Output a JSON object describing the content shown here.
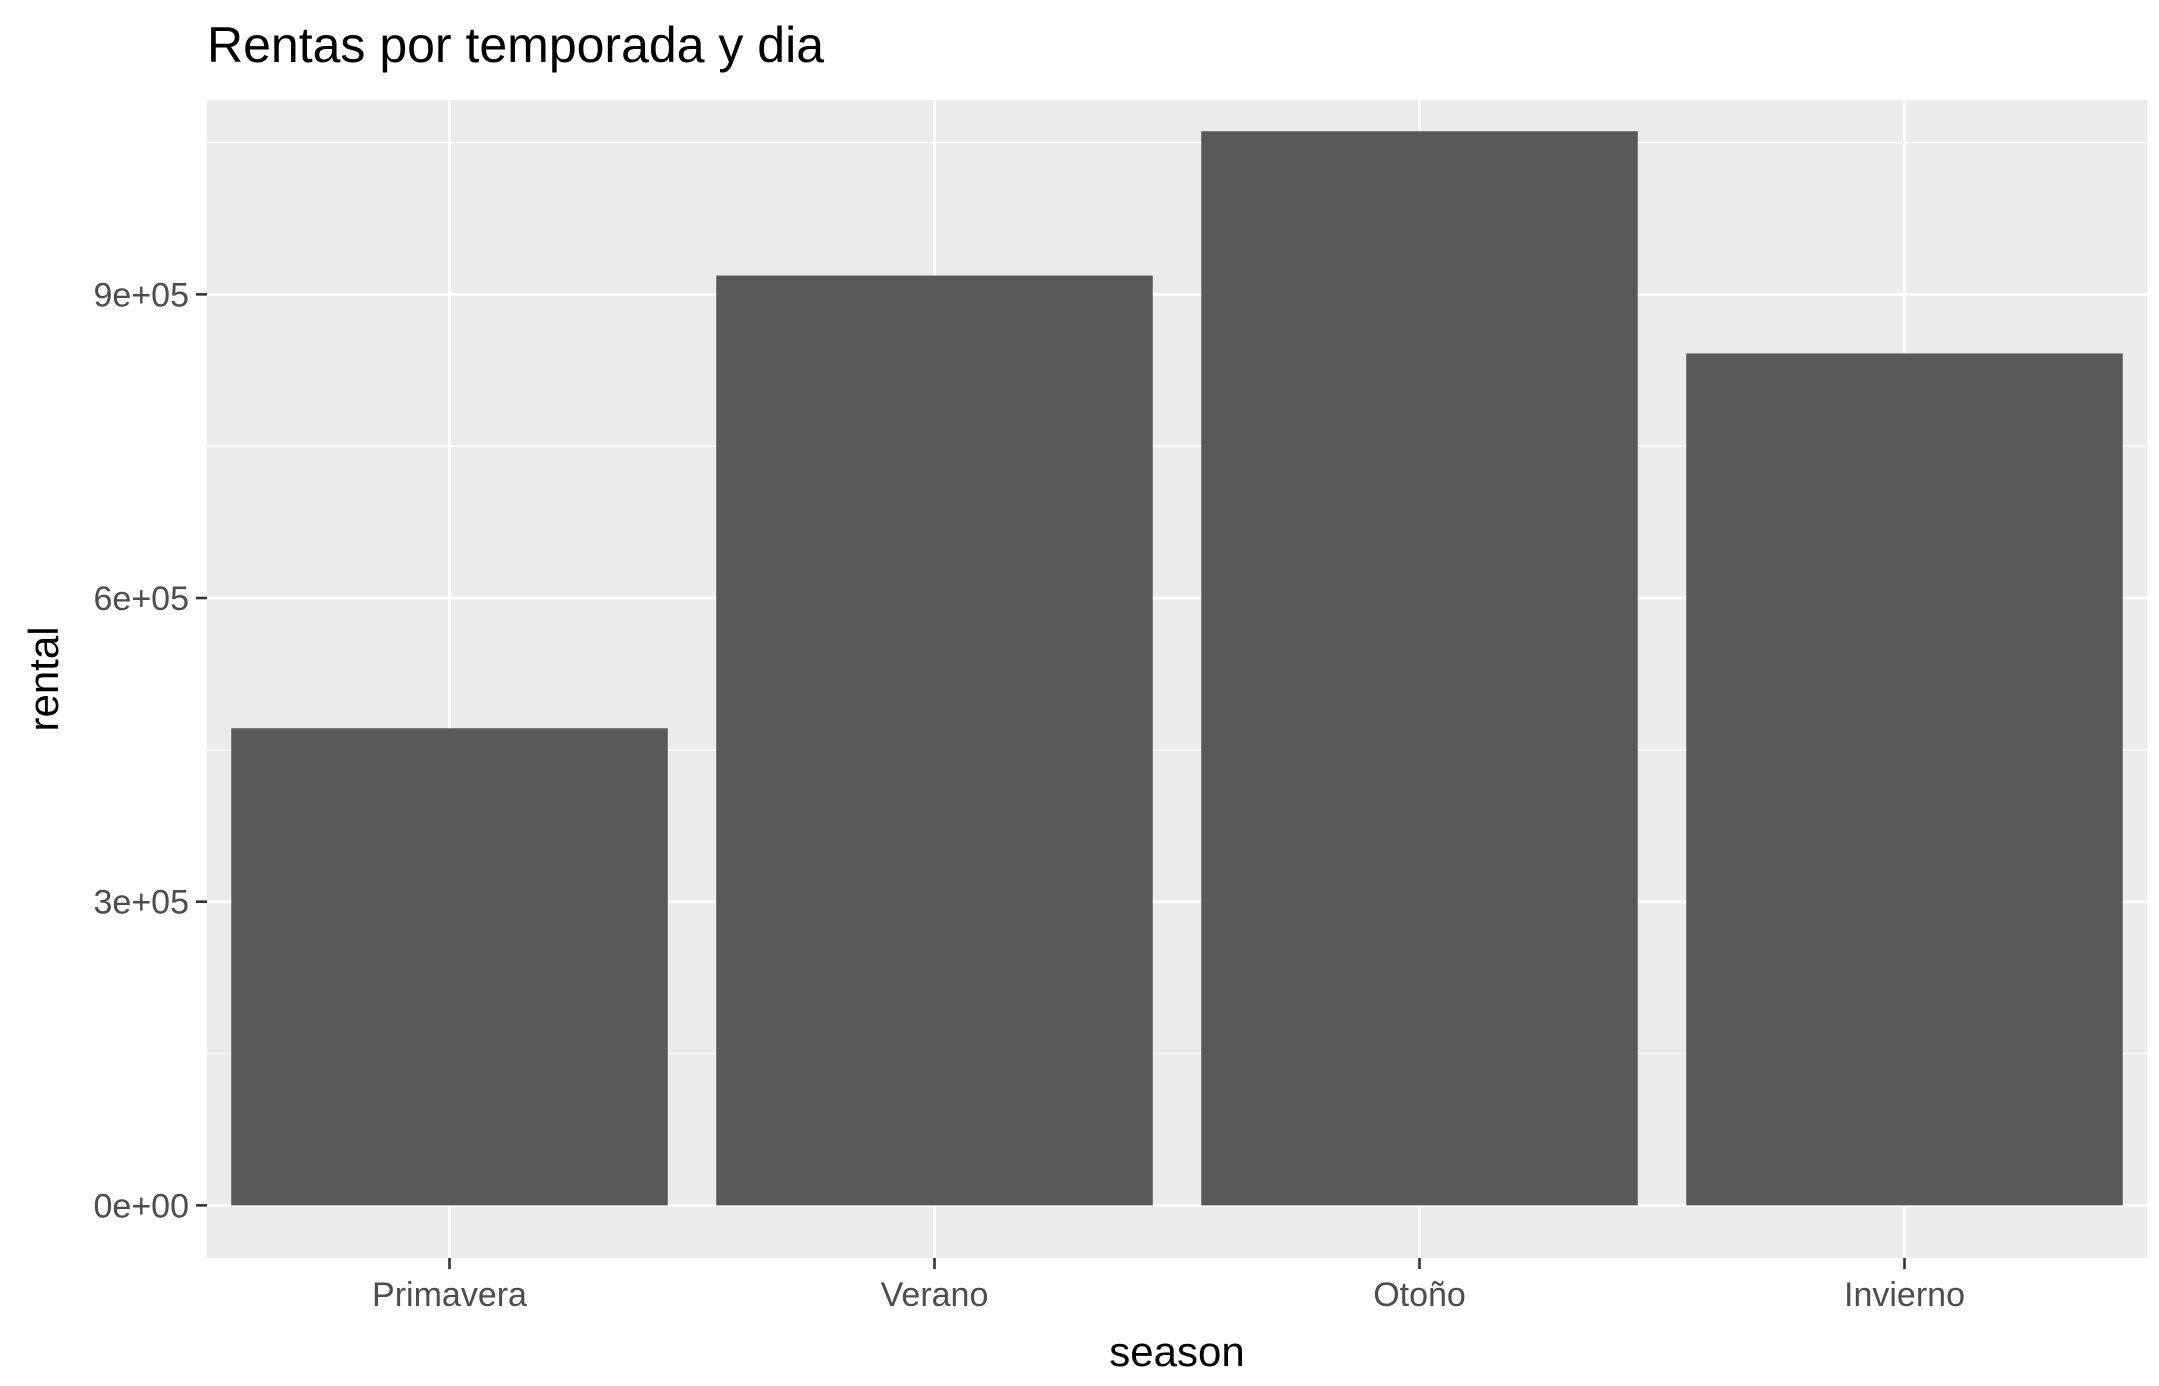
{
  "chart_data": {
    "type": "bar",
    "title": "Rentas por temporada y dia",
    "xlabel": "season",
    "ylabel": "rental",
    "categories": [
      "Primavera",
      "Verano",
      "Otoño",
      "Invierno"
    ],
    "values": [
      471348,
      918589,
      1061129,
      841613
    ],
    "ylim": [
      -52000,
      1092000
    ],
    "yticks": [
      0,
      300000,
      600000,
      900000
    ],
    "ytick_labels": [
      "0e+00",
      "3e+05",
      "6e+05",
      "9e+05"
    ],
    "grid": true,
    "legend": "none",
    "colors": {
      "bar": "#595959",
      "panel_background": "#ebebeb",
      "grid": "#ffffff",
      "tick_text": "#4d4d4d",
      "tick_mark": "#333333"
    }
  }
}
